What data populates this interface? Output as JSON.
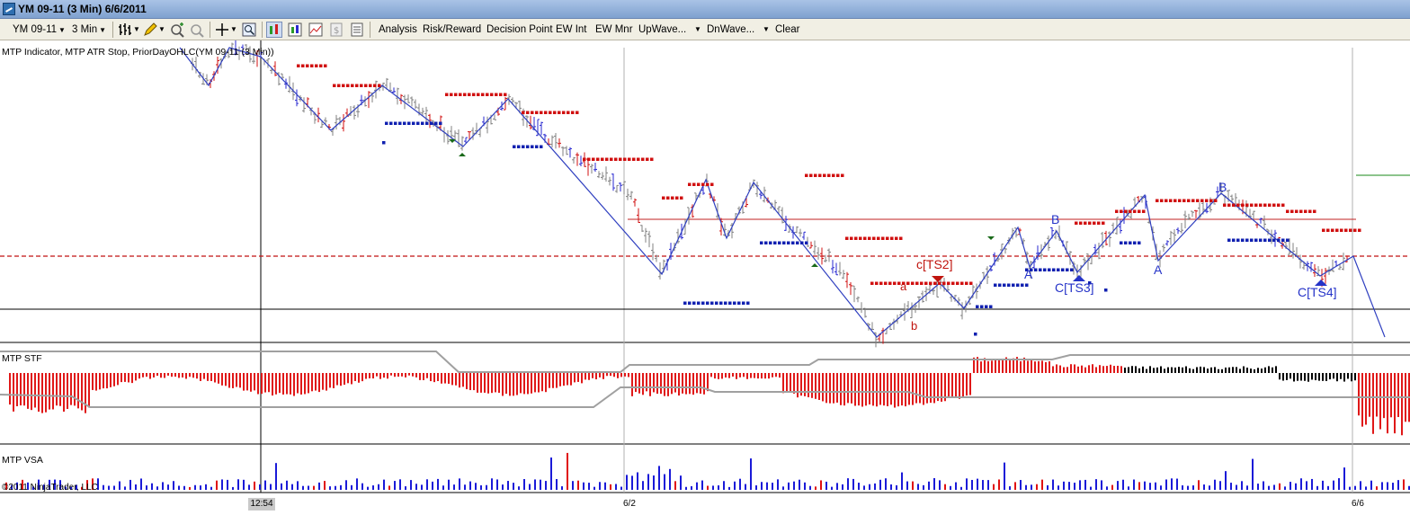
{
  "window": {
    "title": "YM 09-11 (3 Min)  6/6/2011"
  },
  "toolbar": {
    "instrument": "YM 09-11",
    "interval": "3 Min",
    "menu_items": [
      "Analysis",
      "Risk/Reward",
      "Decision Point",
      "EW Int",
      "EW Mnr",
      "UpWave...",
      "DnWave...",
      "Clear"
    ]
  },
  "price_panel": {
    "label": "MTP Indicator, MTP ATR Stop, PriorDayOHLC(YM 09-11 (3 Min))",
    "wave_labels": [
      {
        "text": "c[TS2]",
        "color": "red"
      },
      {
        "text": "a",
        "color": "red"
      },
      {
        "text": "b",
        "color": "red"
      },
      {
        "text": "B",
        "color": "blue"
      },
      {
        "text": "A",
        "color": "blue"
      },
      {
        "text": "C[TS3]",
        "color": "blue"
      },
      {
        "text": "B",
        "color": "blue"
      },
      {
        "text": "A",
        "color": "blue"
      },
      {
        "text": "C[TS4]",
        "color": "blue"
      }
    ]
  },
  "stf_panel": {
    "label": "MTP STF"
  },
  "vsa_panel": {
    "label": "MTP VSA"
  },
  "copyright": "©2011 NinjaTrader, LLC",
  "time_axis": {
    "cursor_time": "12:54",
    "date_ticks": [
      "6/2",
      "6/6"
    ]
  },
  "colors": {
    "bar_up": "#2a2ad0",
    "bar_down": "#d01010",
    "stop_red": "#d01010",
    "stop_blue": "#1020b0",
    "wave_line": "#3040c0",
    "stf_red": "#e01818",
    "vsa_blue": "#1a1ad8",
    "vsa_red": "#e01010"
  }
}
